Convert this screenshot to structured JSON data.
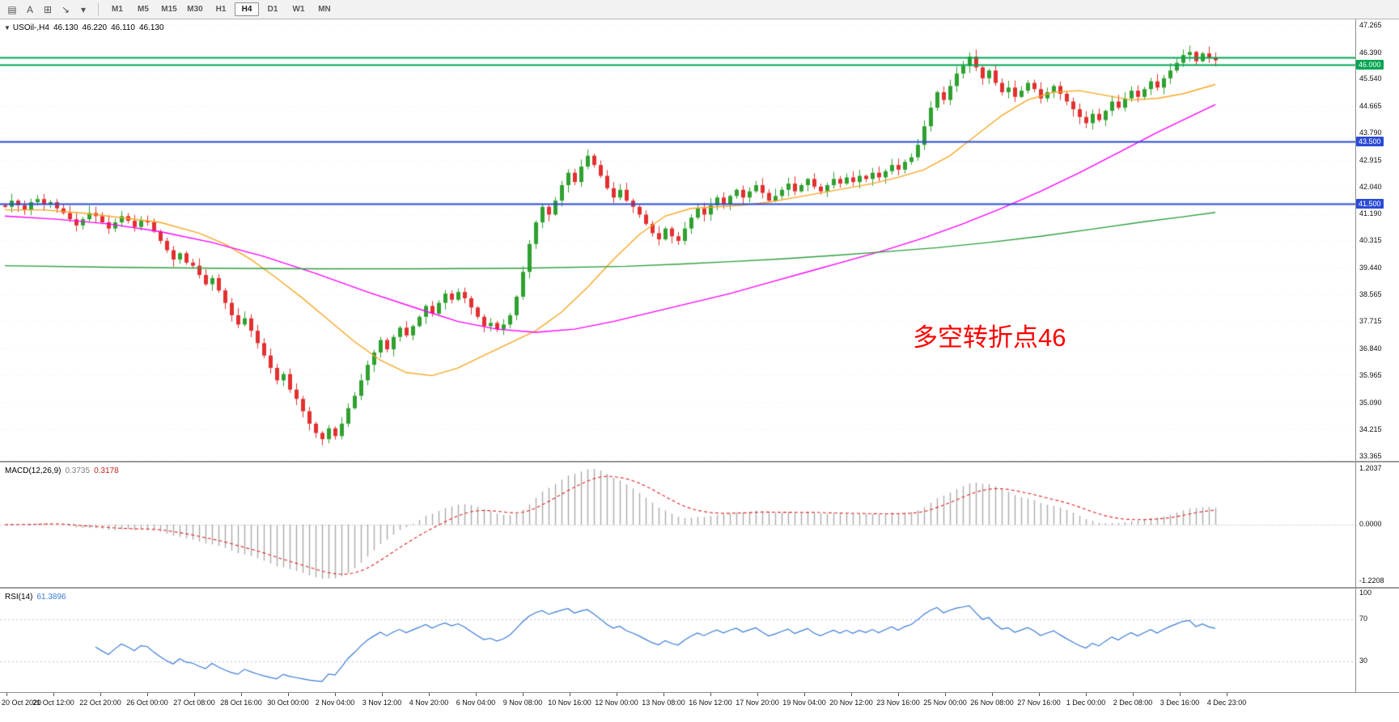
{
  "toolbar": {
    "icons": [
      {
        "name": "window-menu-icon",
        "glyph": "▤"
      },
      {
        "name": "text-tool-icon",
        "glyph": "A"
      },
      {
        "name": "shapes-tool-icon",
        "glyph": "⊞"
      },
      {
        "name": "arrow-tool-icon",
        "glyph": "↘"
      },
      {
        "name": "dropdown-caret-icon",
        "glyph": "▾"
      }
    ],
    "timeframes": [
      {
        "label": "M1",
        "active": false
      },
      {
        "label": "M5",
        "active": false
      },
      {
        "label": "M15",
        "active": false
      },
      {
        "label": "M30",
        "active": false
      },
      {
        "label": "H1",
        "active": false
      },
      {
        "label": "H4",
        "active": true
      },
      {
        "label": "D1",
        "active": false
      },
      {
        "label": "W1",
        "active": false
      },
      {
        "label": "MN",
        "active": false
      }
    ]
  },
  "chart": {
    "header": {
      "collapse_glyph": "▼",
      "symbol": "USOil-,H4",
      "open": "46.130",
      "high": "46.220",
      "low": "46.110",
      "close": "46.130"
    },
    "annotation": {
      "text": "多空转折点46",
      "color": "#FF0000"
    }
  },
  "macd_panel": {
    "label": "MACD(12,26,9)",
    "value_main": "0.3735",
    "value_signal": "0.3178",
    "axis_ticks": [
      "1.2037",
      "0.0000",
      "-1.2208"
    ]
  },
  "rsi_panel": {
    "label": "RSI(14)",
    "value": "61.3896",
    "axis_ticks": [
      "100",
      "70",
      "30"
    ]
  },
  "chart_data": {
    "type": "candlestick",
    "symbol": "USOil-",
    "timeframe": "H4",
    "current_ohlc": {
      "open": 46.13,
      "high": 46.22,
      "low": 46.11,
      "close": 46.13
    },
    "price_range": [
      33.2,
      47.45
    ],
    "price_axis_ticks": [
      47.265,
      46.39,
      45.54,
      44.665,
      43.79,
      42.915,
      42.04,
      41.19,
      40.315,
      39.44,
      38.565,
      37.715,
      36.84,
      35.965,
      35.09,
      34.215,
      33.365
    ],
    "levels": [
      {
        "price": 46.22,
        "color": "#00A651",
        "tag": null
      },
      {
        "price": 46.0,
        "color": "#00A651",
        "tag": "46.000"
      },
      {
        "price": 43.5,
        "color": "#2B4BD7",
        "tag": "43.500"
      },
      {
        "price": 41.5,
        "color": "#2B4BD7",
        "tag": "41.500"
      }
    ],
    "open_first": 41.45,
    "closes": [
      41.4,
      41.6,
      41.45,
      41.3,
      41.55,
      41.65,
      41.5,
      41.55,
      41.35,
      41.2,
      41.0,
      40.8,
      41.0,
      41.2,
      41.1,
      40.9,
      40.7,
      40.9,
      41.1,
      40.95,
      40.75,
      40.95,
      40.9,
      40.6,
      40.3,
      40.0,
      39.7,
      39.9,
      39.6,
      39.5,
      39.2,
      38.9,
      39.1,
      38.7,
      38.3,
      37.9,
      37.6,
      37.8,
      37.4,
      37.0,
      36.6,
      36.2,
      35.8,
      36.0,
      35.5,
      35.2,
      34.8,
      34.4,
      34.1,
      33.9,
      34.25,
      34.0,
      34.4,
      34.9,
      35.3,
      35.8,
      36.3,
      36.7,
      37.1,
      36.8,
      37.2,
      37.5,
      37.25,
      37.55,
      37.85,
      38.2,
      37.95,
      38.3,
      38.6,
      38.4,
      38.65,
      38.45,
      38.15,
      37.85,
      37.55,
      37.65,
      37.45,
      37.6,
      37.9,
      38.5,
      39.3,
      40.2,
      40.9,
      41.4,
      41.15,
      41.6,
      42.1,
      42.5,
      42.2,
      42.7,
      43.05,
      42.75,
      42.4,
      42.0,
      41.7,
      41.95,
      41.6,
      41.4,
      41.15,
      40.85,
      40.55,
      40.35,
      40.7,
      40.45,
      40.3,
      40.7,
      41.05,
      41.35,
      41.15,
      41.45,
      41.7,
      41.5,
      41.75,
      41.95,
      41.7,
      41.9,
      42.1,
      41.85,
      41.6,
      41.75,
      41.95,
      42.15,
      41.9,
      42.1,
      42.3,
      42.05,
      41.9,
      42.1,
      42.3,
      42.15,
      42.35,
      42.2,
      42.4,
      42.3,
      42.5,
      42.35,
      42.55,
      42.75,
      42.6,
      42.85,
      43.0,
      43.4,
      44.0,
      44.6,
      45.1,
      44.85,
      45.3,
      45.7,
      45.95,
      46.25,
      45.9,
      45.55,
      45.8,
      45.4,
      45.1,
      45.25,
      44.95,
      45.15,
      45.4,
      45.2,
      44.9,
      45.1,
      45.3,
      45.05,
      44.8,
      44.55,
      44.3,
      44.1,
      44.4,
      44.2,
      44.5,
      44.8,
      44.6,
      44.9,
      45.15,
      44.95,
      45.2,
      45.45,
      45.25,
      45.55,
      45.8,
      46.05,
      46.3,
      46.4,
      46.1,
      46.35,
      46.2,
      46.13
    ],
    "candle_colors": {
      "up": "#2FA12F",
      "down": "#E23030"
    },
    "moving_averages": [
      {
        "name": "ma-fast",
        "color": "#F6A623",
        "points": [
          [
            0,
            41.3
          ],
          [
            6,
            41.3
          ],
          [
            12,
            41.2
          ],
          [
            18,
            41.05
          ],
          [
            24,
            40.9
          ],
          [
            30,
            40.55
          ],
          [
            34,
            40.2
          ],
          [
            38,
            39.7
          ],
          [
            42,
            39.1
          ],
          [
            46,
            38.45
          ],
          [
            50,
            37.75
          ],
          [
            54,
            37.05
          ],
          [
            58,
            36.45
          ],
          [
            62,
            36.05
          ],
          [
            66,
            35.95
          ],
          [
            70,
            36.2
          ],
          [
            74,
            36.6
          ],
          [
            78,
            37.0
          ],
          [
            82,
            37.4
          ],
          [
            86,
            38.0
          ],
          [
            90,
            38.8
          ],
          [
            94,
            39.7
          ],
          [
            98,
            40.5
          ],
          [
            102,
            41.1
          ],
          [
            106,
            41.35
          ],
          [
            110,
            41.4
          ],
          [
            114,
            41.45
          ],
          [
            118,
            41.55
          ],
          [
            122,
            41.7
          ],
          [
            126,
            41.85
          ],
          [
            130,
            42.0
          ],
          [
            134,
            42.15
          ],
          [
            138,
            42.35
          ],
          [
            142,
            42.6
          ],
          [
            146,
            43.05
          ],
          [
            150,
            43.7
          ],
          [
            154,
            44.35
          ],
          [
            158,
            44.85
          ],
          [
            162,
            45.1
          ],
          [
            166,
            45.15
          ],
          [
            170,
            45.0
          ],
          [
            174,
            44.85
          ],
          [
            178,
            44.9
          ],
          [
            182,
            45.05
          ],
          [
            187,
            45.35
          ]
        ]
      },
      {
        "name": "ma-mid",
        "color": "#FF00FF",
        "points": [
          [
            0,
            41.1
          ],
          [
            8,
            41.0
          ],
          [
            16,
            40.85
          ],
          [
            24,
            40.6
          ],
          [
            32,
            40.25
          ],
          [
            40,
            39.8
          ],
          [
            48,
            39.25
          ],
          [
            56,
            38.65
          ],
          [
            64,
            38.1
          ],
          [
            70,
            37.7
          ],
          [
            76,
            37.45
          ],
          [
            82,
            37.35
          ],
          [
            88,
            37.45
          ],
          [
            94,
            37.7
          ],
          [
            100,
            38.0
          ],
          [
            106,
            38.3
          ],
          [
            112,
            38.6
          ],
          [
            118,
            38.95
          ],
          [
            124,
            39.3
          ],
          [
            130,
            39.65
          ],
          [
            136,
            40.0
          ],
          [
            142,
            40.4
          ],
          [
            148,
            40.85
          ],
          [
            154,
            41.35
          ],
          [
            160,
            41.9
          ],
          [
            166,
            42.5
          ],
          [
            172,
            43.15
          ],
          [
            178,
            43.8
          ],
          [
            183,
            44.3
          ],
          [
            187,
            44.7
          ]
        ]
      },
      {
        "name": "ma-slow",
        "color": "#2E9E3E",
        "points": [
          [
            0,
            39.5
          ],
          [
            16,
            39.45
          ],
          [
            32,
            39.42
          ],
          [
            48,
            39.4
          ],
          [
            64,
            39.4
          ],
          [
            80,
            39.42
          ],
          [
            96,
            39.48
          ],
          [
            104,
            39.55
          ],
          [
            112,
            39.63
          ],
          [
            120,
            39.72
          ],
          [
            128,
            39.83
          ],
          [
            136,
            39.95
          ],
          [
            144,
            40.08
          ],
          [
            152,
            40.25
          ],
          [
            160,
            40.45
          ],
          [
            168,
            40.68
          ],
          [
            176,
            40.92
          ],
          [
            182,
            41.08
          ],
          [
            187,
            41.22
          ]
        ]
      }
    ],
    "indicators": {
      "macd": {
        "fast": 12,
        "slow": 26,
        "signal": 9,
        "histogram_color": "#ABABAB",
        "signal_color": "#DD2222"
      },
      "rsi": {
        "period": 14,
        "color": "#3A7BD5",
        "levels": [
          70,
          30
        ]
      }
    },
    "time_labels": [
      "20 Oct 2020",
      "21 Oct 12:00",
      "22 Oct 20:00",
      "26 Oct 00:00",
      "27 Oct 08:00",
      "28 Oct 16:00",
      "30 Oct 00:00",
      "2 Nov 04:00",
      "3 Nov 12:00",
      "4 Nov 20:00",
      "6 Nov 04:00",
      "9 Nov 08:00",
      "10 Nov 16:00",
      "12 Nov 00:00",
      "13 Nov 08:00",
      "16 Nov 12:00",
      "17 Nov 20:00",
      "19 Nov 04:00",
      "20 Nov 12:00",
      "23 Nov 16:00",
      "25 Nov 00:00",
      "26 Nov 08:00",
      "27 Nov 16:00",
      "1 Dec 00:00",
      "2 Dec 08:00",
      "3 Dec 16:00",
      "4 Dec 23:00"
    ]
  }
}
